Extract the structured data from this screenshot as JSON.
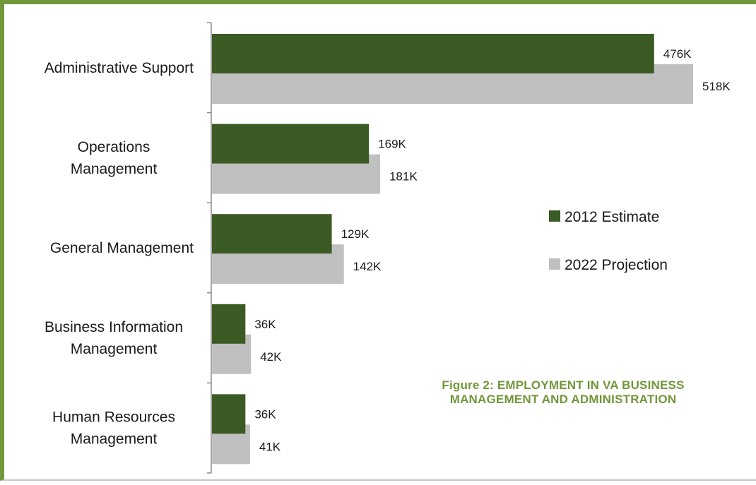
{
  "chart_data": {
    "type": "bar",
    "orientation": "horizontal",
    "categories": [
      [
        "Administrative Support"
      ],
      [
        "Operations",
        "Management"
      ],
      [
        "General Management"
      ],
      [
        "Business Information",
        "Management"
      ],
      [
        "Human Resources",
        "Management"
      ]
    ],
    "series": [
      {
        "name": "2012 Estimate",
        "color": "#3b5a24",
        "values": [
          476,
          169,
          129,
          36,
          36
        ],
        "labels": [
          "476K",
          "169K",
          "129K",
          "36K",
          "36K"
        ]
      },
      {
        "name": "2022 Projection",
        "color": "#c0c0c0",
        "values": [
          518,
          181,
          142,
          42,
          41
        ],
        "labels": [
          "518K",
          "181K",
          "142K",
          "42K",
          "41K"
        ]
      }
    ],
    "xlim": [
      0,
      520
    ],
    "x_axis_visible": false,
    "grid": false,
    "legend_position": "right"
  },
  "caption": {
    "line1": "Figure 2:   EMPLOYMENT IN VA BUSINESS",
    "line2": "MANAGEMENT AND ADMINISTRATION"
  },
  "colors": {
    "border": "#72963a",
    "axis": "#8c8c8c",
    "caption": "#72963a"
  }
}
